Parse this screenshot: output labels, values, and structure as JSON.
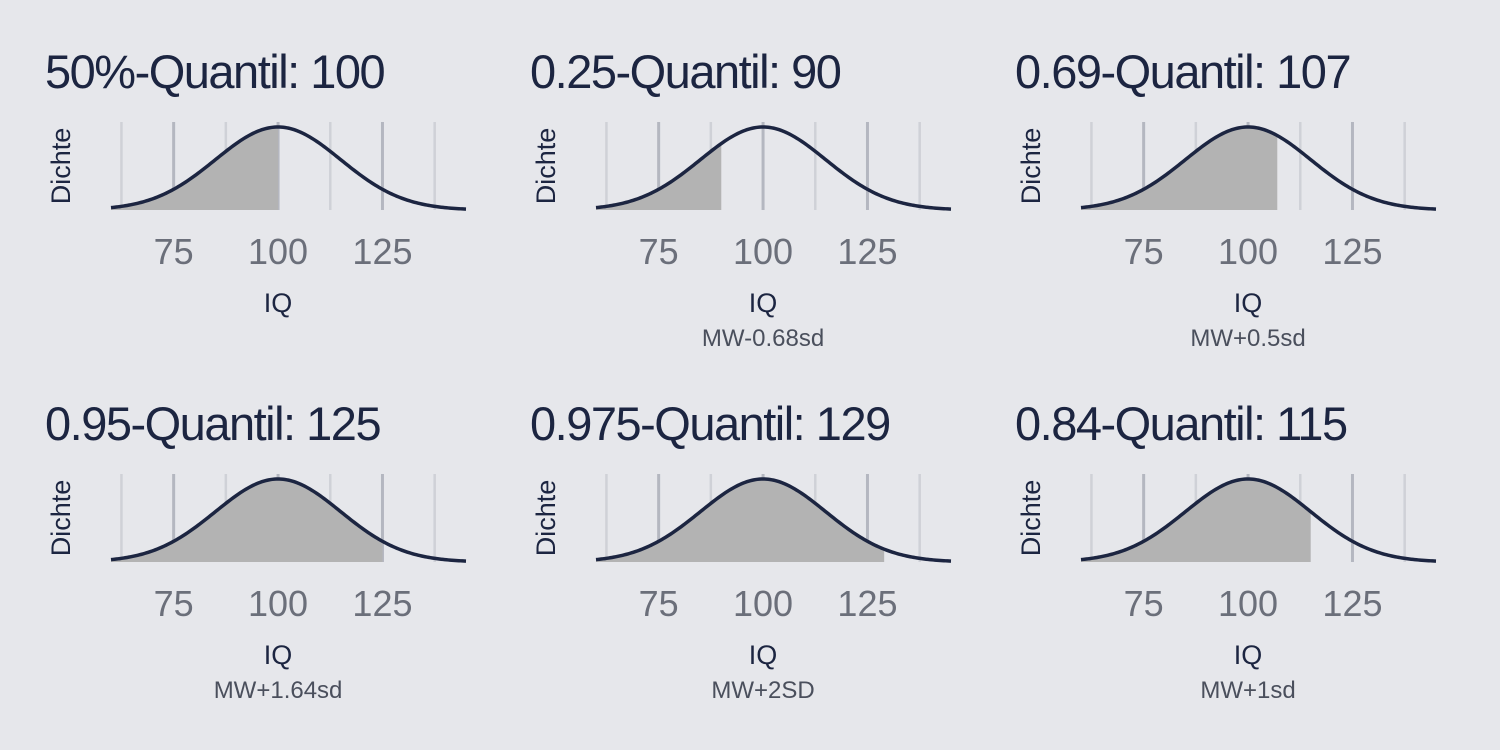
{
  "chart_data": [
    {
      "type": "area",
      "title": "50%-Quantil: 100",
      "xlabel": "IQ",
      "ylabel": "Dichte",
      "caption": "",
      "xticks": [
        75,
        100,
        125
      ],
      "xlim": [
        60,
        145
      ],
      "distribution": {
        "mean": 100,
        "sd": 15
      },
      "shaded_upto": 100
    },
    {
      "type": "area",
      "title": "0.25-Quantil: 90",
      "xlabel": "IQ",
      "ylabel": "Dichte",
      "caption": "MW-0.68sd",
      "xticks": [
        75,
        100,
        125
      ],
      "xlim": [
        60,
        145
      ],
      "distribution": {
        "mean": 100,
        "sd": 15
      },
      "shaded_upto": 90
    },
    {
      "type": "area",
      "title": "0.69-Quantil: 107",
      "xlabel": "IQ",
      "ylabel": "Dichte",
      "caption": "MW+0.5sd",
      "xticks": [
        75,
        100,
        125
      ],
      "xlim": [
        60,
        145
      ],
      "distribution": {
        "mean": 100,
        "sd": 15
      },
      "shaded_upto": 107
    },
    {
      "type": "area",
      "title": "0.95-Quantil: 125",
      "xlabel": "IQ",
      "ylabel": "Dichte",
      "caption": "MW+1.64sd",
      "xticks": [
        75,
        100,
        125
      ],
      "xlim": [
        60,
        145
      ],
      "distribution": {
        "mean": 100,
        "sd": 15
      },
      "shaded_upto": 125
    },
    {
      "type": "area",
      "title": "0.975-Quantil: 129",
      "xlabel": "IQ",
      "ylabel": "Dichte",
      "caption": "MW+2SD",
      "xticks": [
        75,
        100,
        125
      ],
      "xlim": [
        60,
        145
      ],
      "distribution": {
        "mean": 100,
        "sd": 15
      },
      "shaded_upto": 129
    },
    {
      "type": "area",
      "title": "0.84-Quantil: 115",
      "xlabel": "IQ",
      "ylabel": "Dichte",
      "caption": "MW+1sd",
      "xticks": [
        75,
        100,
        125
      ],
      "xlim": [
        60,
        145
      ],
      "distribution": {
        "mean": 100,
        "sd": 15
      },
      "shaded_upto": 115
    }
  ],
  "colors": {
    "background": "#e6e7eb",
    "curve": "#1c2541",
    "shade": "#b3b3b3",
    "grid_major": "#b4b7c0",
    "grid_minor": "#cfd1d7",
    "tick_label": "#6b6f7a",
    "text": "#1c2541",
    "caption": "#4a4f5c"
  }
}
